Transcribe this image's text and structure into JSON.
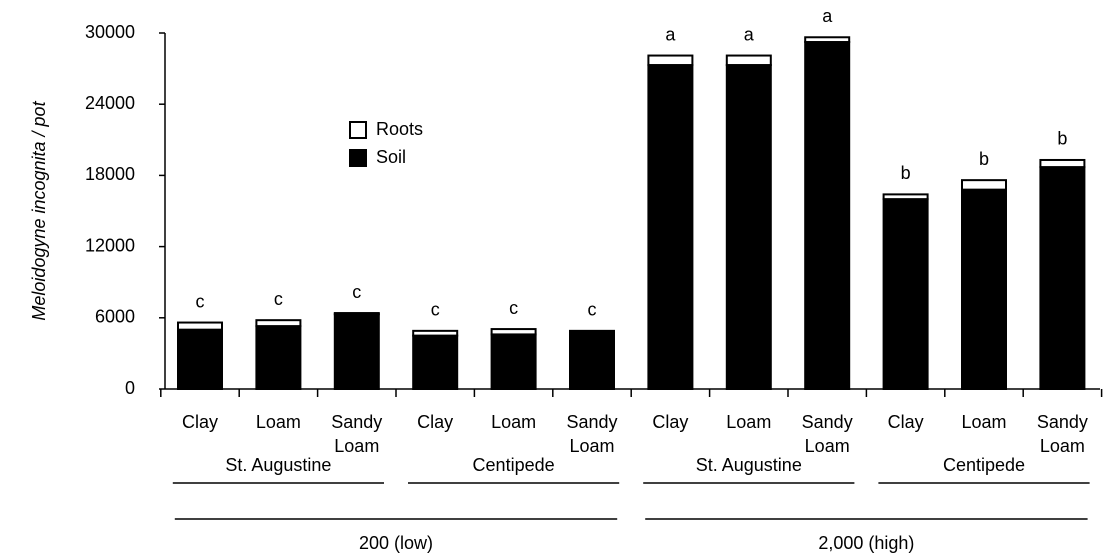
{
  "chart_data": {
    "type": "stacked_bar",
    "ylabel": "Meloidogyne incognita / pot",
    "categories": [
      "Clay",
      "Loam",
      "Sandy Loam",
      "Clay",
      "Loam",
      "Sandy Loam",
      "Clay",
      "Loam",
      "Sandy Loam",
      "Clay",
      "Loam",
      "Sandy Loam"
    ],
    "groups": [
      "St. Augustine",
      "Centipede",
      "St. Augustine",
      "Centipede"
    ],
    "supergroups": [
      "200 (low)",
      "2,000 (high)"
    ],
    "series": [
      {
        "name": "Soil",
        "color": "#000000",
        "values": [
          5000,
          5300,
          6300,
          4500,
          4600,
          4800,
          27300,
          27300,
          29240,
          16000,
          16800,
          18700
        ]
      },
      {
        "name": "Roots",
        "color": "#ffffff",
        "values": [
          600,
          500,
          100,
          400,
          450,
          100,
          800,
          800,
          400,
          400,
          800,
          600
        ]
      }
    ],
    "annotations": [
      "c",
      "c",
      "c",
      "c",
      "c",
      "c",
      "a",
      "a",
      "a",
      "b",
      "b",
      "b"
    ],
    "ylim": [
      0,
      30000
    ],
    "yticks": [
      0,
      6000,
      12000,
      18000,
      24000,
      30000
    ]
  }
}
